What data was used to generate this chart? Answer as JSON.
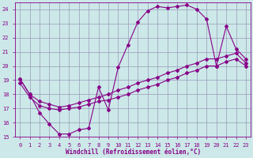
{
  "xlabel": "Windchill (Refroidissement éolien,°C)",
  "ylabel": "",
  "xlim": [
    -0.5,
    23.5
  ],
  "ylim": [
    15,
    24.5
  ],
  "yticks": [
    15,
    16,
    17,
    18,
    19,
    20,
    21,
    22,
    23,
    24
  ],
  "xticks": [
    0,
    1,
    2,
    3,
    4,
    5,
    6,
    7,
    8,
    9,
    10,
    11,
    12,
    13,
    14,
    15,
    16,
    17,
    18,
    19,
    20,
    21,
    22,
    23
  ],
  "bg_color": "#cce8e8",
  "line_color": "#880088",
  "grid_color": "#9999bb",
  "line1_x": [
    0,
    1,
    2,
    3,
    4,
    5,
    6,
    7,
    8,
    9,
    10,
    11,
    12,
    13,
    14,
    15,
    16,
    17,
    18,
    19,
    20,
    21,
    22,
    23
  ],
  "line1_y": [
    19.1,
    18.0,
    16.7,
    15.9,
    15.2,
    15.2,
    15.5,
    15.6,
    18.5,
    16.9,
    19.9,
    21.5,
    23.1,
    23.9,
    24.2,
    24.1,
    24.2,
    24.3,
    24.0,
    23.3,
    20.0,
    22.8,
    21.2,
    20.5
  ],
  "line2_x": [
    0,
    1,
    2,
    3,
    4,
    5,
    6,
    7,
    8,
    9,
    10,
    11,
    12,
    13,
    14,
    15,
    16,
    17,
    18,
    19,
    20,
    21,
    22,
    23
  ],
  "line2_y": [
    18.8,
    17.8,
    17.2,
    17.0,
    16.9,
    17.0,
    17.1,
    17.3,
    17.5,
    17.6,
    17.8,
    18.0,
    18.3,
    18.5,
    18.7,
    19.0,
    19.2,
    19.5,
    19.7,
    20.0,
    20.0,
    20.3,
    20.5,
    20.0
  ],
  "line3_x": [
    0,
    1,
    2,
    3,
    4,
    5,
    6,
    7,
    8,
    9,
    10,
    11,
    12,
    13,
    14,
    15,
    16,
    17,
    18,
    19,
    20,
    21,
    22,
    23
  ],
  "line3_y": [
    19.1,
    18.0,
    17.5,
    17.3,
    17.1,
    17.2,
    17.4,
    17.6,
    17.8,
    18.0,
    18.3,
    18.5,
    18.8,
    19.0,
    19.2,
    19.5,
    19.7,
    20.0,
    20.2,
    20.5,
    20.5,
    20.7,
    20.9,
    20.2
  ]
}
